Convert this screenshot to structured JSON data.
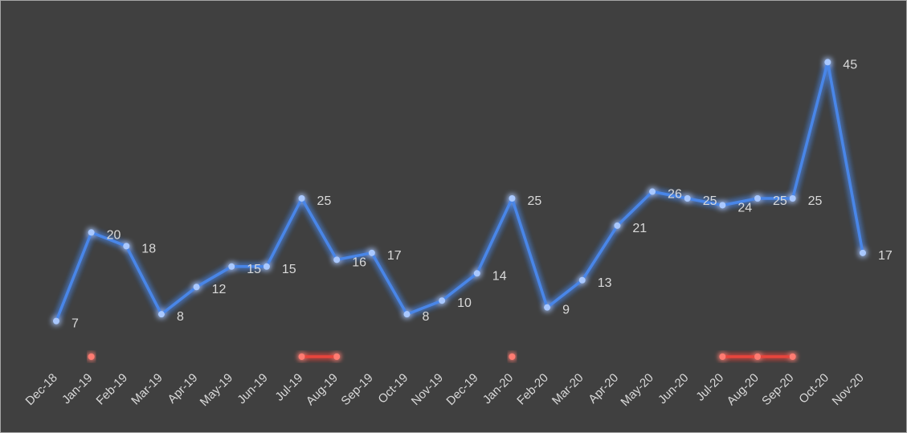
{
  "chart_data": {
    "type": "line",
    "categories": [
      "Dec-18",
      "Jan-19",
      "Feb-19",
      "Mar-19",
      "Apr-19",
      "May-19",
      "Jun-19",
      "Jul-19",
      "Aug-19",
      "Sep-19",
      "Oct-19",
      "Nov-19",
      "Dec-19",
      "Jan-20",
      "Feb-20",
      "Mar-20",
      "Apr-20",
      "May-20",
      "Jun-20",
      "Jul-20",
      "Aug-20",
      "Sep-20",
      "Oct-20",
      "Nov-20"
    ],
    "series": [
      {
        "values": [
          7,
          20,
          18,
          8,
          12,
          15,
          15,
          25,
          16,
          17,
          8,
          10,
          14,
          25,
          9,
          13,
          21,
          26,
          25,
          24,
          25,
          25,
          45,
          17
        ],
        "color": "#4a86e8"
      }
    ],
    "markers": {
      "color": "#e8453c",
      "segments": [
        [
          "Jan-19"
        ],
        [
          "Jul-19",
          "Aug-19"
        ],
        [
          "Jan-20"
        ],
        [
          "Jul-20",
          "Aug-20",
          "Sep-20"
        ]
      ]
    },
    "title": "",
    "xlabel": "",
    "ylabel": "",
    "ylim": [
      0,
      50
    ],
    "grid": false,
    "legend": "none",
    "background": "#404040"
  }
}
